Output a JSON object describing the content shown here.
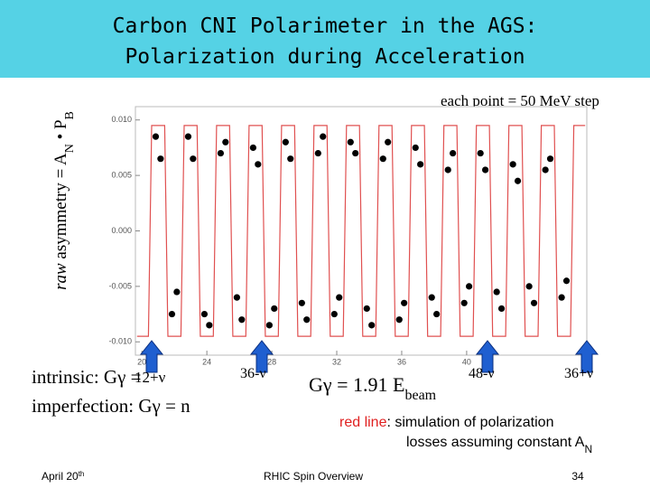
{
  "header": {
    "title_line1": "Carbon CNI Polarimeter in the AGS:",
    "title_line2": "Polarization during Acceleration"
  },
  "y_label": {
    "part1": "raw",
    "part2": " asymmetry = A",
    "sub1": "N",
    "part3": " • P",
    "sub2": "B"
  },
  "note_top": "each point = 50 MeV step",
  "chart_data": {
    "type": "scatter",
    "xlim": [
      19.6,
      47.4
    ],
    "ylim": [
      -0.0112,
      0.0112
    ],
    "xticks": [
      20,
      24,
      28,
      32,
      36,
      40
    ],
    "yticks": [
      {
        "value": 0.01,
        "label": "0.010"
      },
      0.005,
      {
        "value": 0,
        "label": "0.000"
      },
      -0.005,
      {
        "value": -0.01,
        "label": "-0.010"
      }
    ],
    "series": [
      {
        "type": "scatter",
        "color": "#000000",
        "x": [
          20.85,
          21.15,
          21.85,
          22.15,
          22.85,
          23.15,
          23.85,
          24.15,
          24.85,
          25.15,
          25.85,
          26.15,
          26.85,
          27.15,
          27.85,
          28.15,
          28.85,
          29.15,
          29.85,
          30.15,
          30.85,
          31.15,
          31.85,
          32.15,
          32.85,
          33.15,
          33.85,
          34.15,
          34.85,
          35.15,
          35.85,
          36.15,
          36.85,
          37.15,
          37.85,
          38.15,
          38.85,
          39.15,
          39.85,
          40.15,
          40.85,
          41.15,
          41.85,
          42.15,
          42.85,
          43.15,
          43.85,
          44.15,
          44.85,
          45.15,
          45.85,
          46.15
        ],
        "values": [
          0.0085,
          0.0065,
          -0.0075,
          -0.0055,
          0.0085,
          0.0065,
          -0.0075,
          -0.0085,
          0.007,
          0.008,
          -0.006,
          -0.008,
          0.0075,
          0.006,
          -0.0085,
          -0.007,
          0.008,
          0.0065,
          -0.0065,
          -0.008,
          0.007,
          0.0085,
          -0.0075,
          -0.006,
          0.008,
          0.007,
          -0.007,
          -0.0085,
          0.0065,
          0.008,
          -0.008,
          -0.0065,
          0.0075,
          0.006,
          -0.006,
          -0.0075,
          0.0055,
          0.007,
          -0.0065,
          -0.005,
          0.007,
          0.0055,
          -0.0055,
          -0.007,
          0.006,
          0.0045,
          -0.005,
          -0.0065,
          0.0055,
          0.0065,
          -0.006,
          -0.0045
        ]
      },
      {
        "type": "line",
        "color": "#e05050",
        "x": [
          19.7,
          20.4,
          20.6,
          21.4,
          21.6,
          22.4,
          22.6,
          23.4,
          23.6,
          24.4,
          24.6,
          25.4,
          25.6,
          26.4,
          26.6,
          27.4,
          27.6,
          28.4,
          28.6,
          29.4,
          29.6,
          30.4,
          30.6,
          31.4,
          31.6,
          32.4,
          32.6,
          33.4,
          33.6,
          34.4,
          34.6,
          35.4,
          35.6,
          36.4,
          36.6,
          37.4,
          37.6,
          38.4,
          38.6,
          39.4,
          39.6,
          40.4,
          40.6,
          41.4,
          41.6,
          42.4,
          42.6,
          43.4,
          43.6,
          44.4,
          44.6,
          45.4,
          45.6,
          46.4,
          46.6,
          47.3
        ],
        "values": [
          -0.0095,
          -0.0095,
          0.0095,
          0.0095,
          -0.0095,
          -0.0095,
          0.0095,
          0.0095,
          -0.0095,
          -0.0095,
          0.0095,
          0.0095,
          -0.0095,
          -0.0095,
          0.0095,
          0.0095,
          -0.0095,
          -0.0095,
          0.0095,
          0.0095,
          -0.0095,
          -0.0095,
          0.0095,
          0.0095,
          -0.0095,
          -0.0095,
          0.0095,
          0.0095,
          -0.0095,
          -0.0095,
          0.0095,
          0.0095,
          -0.0095,
          -0.0095,
          0.0095,
          0.0095,
          -0.0095,
          -0.0095,
          0.0095,
          0.0095,
          -0.0095,
          -0.0095,
          0.0095,
          0.0095,
          -0.0095,
          -0.0095,
          0.0095,
          0.0095,
          -0.0095,
          -0.0095,
          0.0095,
          0.0095,
          -0.0095,
          -0.0095,
          0.0095,
          0.0095
        ]
      }
    ]
  },
  "intrinsic": {
    "label": "intrinsic: Gγ =",
    "value": "12+ν"
  },
  "imperfection": "imperfection: Gγ = n",
  "arrows": [
    "36-ν",
    "48-ν",
    "36+ν"
  ],
  "formula": {
    "main": "Gγ = 1.91 E",
    "sub": "beam"
  },
  "red_note": {
    "red": "red line",
    "line1": ": simulation of polarization",
    "line2": "losses assuming constant A",
    "sub": "N"
  },
  "footer": {
    "date": "April 20",
    "date_sup": "th",
    "center": "RHIC Spin Overview",
    "page": "34"
  }
}
